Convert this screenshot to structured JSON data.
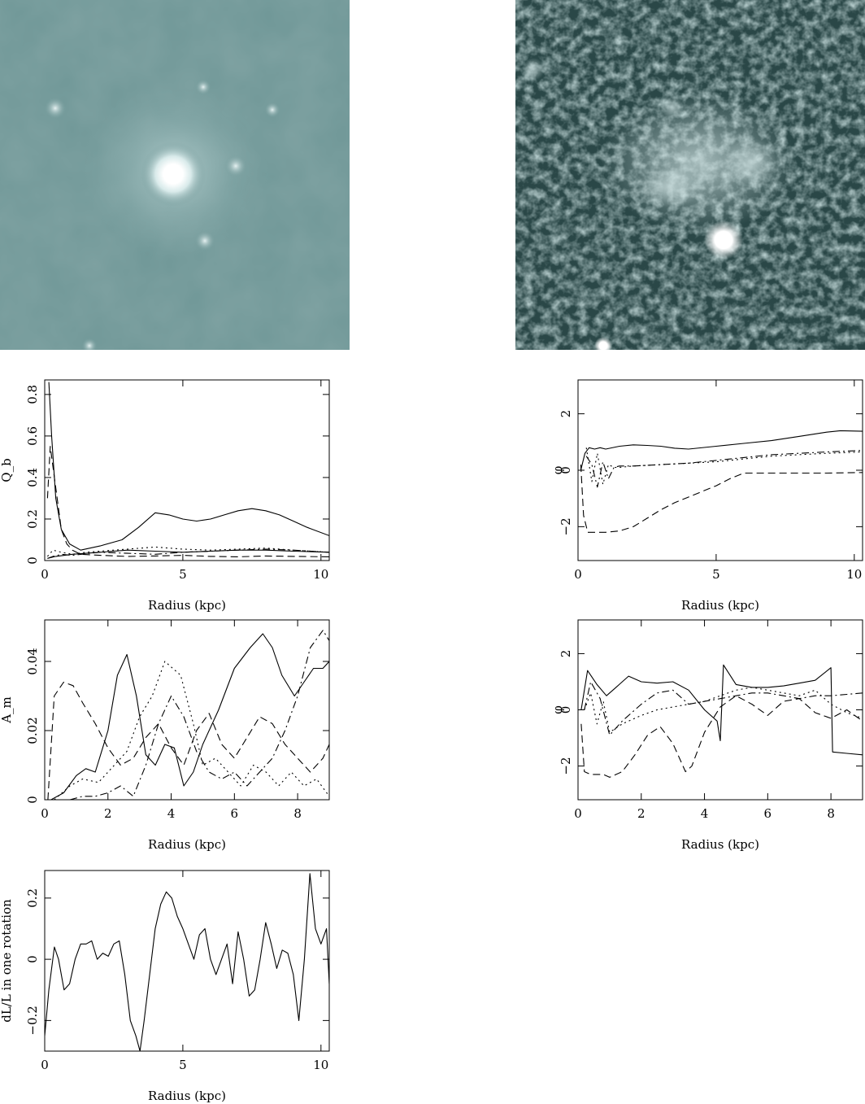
{
  "images": [
    {
      "name": "left-galaxy-image",
      "base": "#6f9797",
      "dark": "#567a7a"
    },
    {
      "name": "right-galaxy-image",
      "base": "#3f6464",
      "dark": "#1c3030"
    }
  ],
  "chart_data": [
    {
      "type": "line",
      "ylabel": "Q_b",
      "xlabel": "Radius (kpc)",
      "xlim": [
        0,
        10.3
      ],
      "ylim": [
        0,
        0.87
      ],
      "xticks": [
        "0",
        "5",
        "10"
      ],
      "yticks": [
        "0",
        "0.2",
        "0.4",
        "0.6",
        "0.8"
      ],
      "ytick_values": [
        0,
        0.2,
        0.4,
        0.6,
        0.8
      ],
      "xtick_values": [
        0,
        5,
        10
      ],
      "series": [
        {
          "style": "solid",
          "x": [
            0.15,
            0.25,
            0.4,
            0.6,
            0.9,
            1.3,
            2.0,
            2.8,
            3.4,
            4.0,
            4.5,
            5.0,
            5.5,
            6.0,
            6.5,
            7.0,
            7.5,
            8.0,
            8.5,
            9.0,
            9.5,
            10.3
          ],
          "y": [
            0.86,
            0.6,
            0.3,
            0.15,
            0.08,
            0.05,
            0.07,
            0.1,
            0.16,
            0.23,
            0.22,
            0.2,
            0.19,
            0.2,
            0.22,
            0.24,
            0.25,
            0.24,
            0.22,
            0.19,
            0.16,
            0.12
          ]
        },
        {
          "style": "dashed",
          "x": [
            0.1,
            0.2,
            0.3,
            0.45,
            0.6,
            0.8,
            1.0,
            1.3,
            2.0,
            3.0,
            4.0,
            5.0,
            6.0,
            7.0,
            8.0,
            9.0,
            10.3
          ],
          "y": [
            0.3,
            0.55,
            0.45,
            0.3,
            0.15,
            0.08,
            0.05,
            0.03,
            0.025,
            0.02,
            0.022,
            0.025,
            0.02,
            0.018,
            0.022,
            0.02,
            0.018
          ]
        },
        {
          "style": "dotted",
          "x": [
            0.1,
            0.3,
            0.6,
            1.0,
            1.5,
            2.5,
            3.5,
            4.0,
            5.0,
            6.0,
            7.0,
            8.0,
            9.0,
            10.3
          ],
          "y": [
            0.02,
            0.05,
            0.04,
            0.03,
            0.04,
            0.05,
            0.06,
            0.065,
            0.055,
            0.05,
            0.055,
            0.06,
            0.05,
            0.04
          ]
        },
        {
          "style": "dashdot",
          "x": [
            0.1,
            0.3,
            0.6,
            1.0,
            2.0,
            3.0,
            4.0,
            5.0,
            6.0,
            7.0,
            8.0,
            9.0,
            10.3
          ],
          "y": [
            0.01,
            0.02,
            0.03,
            0.025,
            0.04,
            0.035,
            0.03,
            0.04,
            0.045,
            0.05,
            0.055,
            0.05,
            0.04
          ]
        },
        {
          "style": "solid",
          "x": [
            0.1,
            0.4,
            1.0,
            2.0,
            3.0,
            4.0,
            5.0,
            6.0,
            7.0,
            8.0,
            9.0,
            10.3
          ],
          "y": [
            0.01,
            0.02,
            0.03,
            0.04,
            0.05,
            0.045,
            0.04,
            0.045,
            0.05,
            0.05,
            0.045,
            0.04
          ]
        }
      ]
    },
    {
      "type": "line",
      "ylabel": "φ",
      "xlabel": "Radius (kpc)",
      "xlim": [
        0,
        10.3
      ],
      "ylim": [
        -3.2,
        3.2
      ],
      "xticks": [
        "0",
        "5",
        "10"
      ],
      "yticks": [
        "−2",
        "0",
        "2"
      ],
      "ytick_values": [
        -2,
        0,
        2
      ],
      "xtick_values": [
        0,
        5,
        10
      ],
      "series": [
        {
          "style": "solid",
          "x": [
            0.1,
            0.25,
            0.4,
            0.6,
            0.8,
            1.0,
            1.5,
            2.0,
            2.5,
            3.0,
            3.5,
            4.0,
            5.0,
            6.0,
            7.0,
            8.0,
            9.0,
            9.5,
            10.3
          ],
          "y": [
            0.0,
            0.6,
            0.8,
            0.75,
            0.8,
            0.75,
            0.85,
            0.9,
            0.88,
            0.85,
            0.78,
            0.75,
            0.85,
            0.95,
            1.05,
            1.2,
            1.35,
            1.4,
            1.38
          ]
        },
        {
          "style": "dashed",
          "x": [
            0.1,
            0.2,
            0.35,
            0.6,
            1.0,
            1.5,
            2.0,
            2.5,
            3.0,
            3.5,
            4.0,
            4.5,
            5.0,
            5.5,
            6.0,
            7.0,
            8.0,
            9.0,
            10.3
          ],
          "y": [
            0.2,
            -1.6,
            -2.2,
            -2.2,
            -2.2,
            -2.15,
            -2.0,
            -1.7,
            -1.4,
            -1.15,
            -0.95,
            -0.75,
            -0.55,
            -0.3,
            -0.1,
            -0.1,
            -0.1,
            -0.1,
            -0.08
          ]
        },
        {
          "style": "dotted",
          "x": [
            0.3,
            0.5,
            0.7,
            0.9,
            1.1,
            1.3,
            1.5,
            2.0,
            3.0,
            4.0,
            5.0,
            6.0,
            7.0,
            8.0,
            9.0,
            10.3
          ],
          "y": [
            0.8,
            -0.4,
            0.6,
            -0.5,
            0.2,
            0.1,
            0.1,
            0.15,
            0.2,
            0.25,
            0.3,
            0.4,
            0.5,
            0.55,
            0.6,
            0.65
          ]
        },
        {
          "style": "dashdot",
          "x": [
            0.3,
            0.5,
            0.7,
            0.9,
            1.1,
            1.3,
            1.5,
            2.0,
            3.0,
            4.0,
            5.0,
            6.0,
            7.0,
            8.0,
            9.0,
            10.3
          ],
          "y": [
            0.5,
            0.2,
            -0.6,
            0.3,
            -0.3,
            0.1,
            0.15,
            0.15,
            0.2,
            0.25,
            0.35,
            0.45,
            0.55,
            0.6,
            0.65,
            0.7
          ]
        }
      ]
    },
    {
      "type": "line",
      "ylabel": "A_m",
      "xlabel": "Radius (kpc)",
      "xlim": [
        0,
        9
      ],
      "ylim": [
        0,
        0.052
      ],
      "xticks": [
        "0",
        "2",
        "4",
        "6",
        "8"
      ],
      "yticks": [
        "0",
        "0.02",
        "0.04"
      ],
      "ytick_values": [
        0,
        0.02,
        0.04
      ],
      "xtick_values": [
        0,
        2,
        4,
        6,
        8
      ],
      "series": [
        {
          "style": "solid",
          "x": [
            0.2,
            0.6,
            1.0,
            1.3,
            1.6,
            2.0,
            2.3,
            2.6,
            2.9,
            3.2,
            3.5,
            3.8,
            4.1,
            4.4,
            4.7,
            5.0,
            5.5,
            6.0,
            6.5,
            6.9,
            7.2,
            7.5,
            7.9,
            8.2,
            8.5,
            8.8,
            9.0
          ],
          "y": [
            0.0,
            0.002,
            0.007,
            0.009,
            0.008,
            0.02,
            0.036,
            0.042,
            0.03,
            0.013,
            0.01,
            0.016,
            0.015,
            0.004,
            0.008,
            0.016,
            0.026,
            0.038,
            0.044,
            0.048,
            0.044,
            0.036,
            0.03,
            0.034,
            0.038,
            0.038,
            0.04
          ]
        },
        {
          "style": "dashed",
          "x": [
            0.1,
            0.3,
            0.6,
            0.9,
            1.2,
            1.6,
            2.0,
            2.4,
            2.8,
            3.2,
            3.6,
            4.0,
            4.4,
            4.8,
            5.2,
            5.6,
            6.0,
            6.4,
            6.8,
            7.2,
            7.6,
            8.0,
            8.4,
            8.8,
            9.0
          ],
          "y": [
            0.0,
            0.03,
            0.034,
            0.033,
            0.028,
            0.022,
            0.015,
            0.01,
            0.012,
            0.018,
            0.022,
            0.015,
            0.01,
            0.02,
            0.025,
            0.016,
            0.012,
            0.018,
            0.024,
            0.022,
            0.016,
            0.012,
            0.008,
            0.012,
            0.016
          ]
        },
        {
          "style": "dotted",
          "x": [
            0.3,
            0.8,
            1.2,
            1.7,
            2.2,
            2.6,
            3.0,
            3.4,
            3.8,
            4.3,
            4.7,
            5.0,
            5.4,
            5.8,
            6.2,
            6.6,
            7.0,
            7.4,
            7.8,
            8.2,
            8.6,
            9.0
          ],
          "y": [
            0.0,
            0.004,
            0.006,
            0.005,
            0.01,
            0.014,
            0.024,
            0.03,
            0.04,
            0.036,
            0.022,
            0.01,
            0.012,
            0.008,
            0.004,
            0.01,
            0.008,
            0.004,
            0.008,
            0.004,
            0.006,
            0.001
          ]
        },
        {
          "style": "dashdot",
          "x": [
            0.8,
            1.2,
            1.6,
            2.0,
            2.4,
            2.8,
            3.2,
            3.6,
            4.0,
            4.4,
            4.8,
            5.2,
            5.6,
            6.0,
            6.4,
            6.8,
            7.2,
            7.6,
            8.0,
            8.4,
            8.8,
            9.0
          ],
          "y": [
            0.0,
            0.001,
            0.001,
            0.002,
            0.004,
            0.001,
            0.01,
            0.022,
            0.03,
            0.024,
            0.014,
            0.008,
            0.006,
            0.008,
            0.004,
            0.008,
            0.012,
            0.02,
            0.03,
            0.044,
            0.049,
            0.046
          ]
        }
      ]
    },
    {
      "type": "line",
      "ylabel": "φ",
      "xlabel": "Radius (kpc)",
      "xlim": [
        0,
        9
      ],
      "ylim": [
        -3.2,
        3.2
      ],
      "xticks": [
        "0",
        "2",
        "4",
        "6",
        "8"
      ],
      "yticks": [
        "−2",
        "0",
        "2"
      ],
      "ytick_values": [
        -2,
        0,
        2
      ],
      "xtick_values": [
        0,
        2,
        4,
        6,
        8
      ],
      "series": [
        {
          "style": "solid",
          "x": [
            0.1,
            0.3,
            0.6,
            0.9,
            1.2,
            1.6,
            2.0,
            2.5,
            3.0,
            3.5,
            4.0,
            4.4,
            4.5,
            4.6,
            5.0,
            5.5,
            6.0,
            6.5,
            7.0,
            7.5,
            8.0,
            8.05,
            8.5,
            9.0
          ],
          "y": [
            0.0,
            1.4,
            0.9,
            0.5,
            0.8,
            1.2,
            1.0,
            0.95,
            1.0,
            0.7,
            0.0,
            -0.4,
            -1.1,
            1.6,
            0.9,
            0.8,
            0.8,
            0.85,
            0.95,
            1.05,
            1.5,
            -1.5,
            -1.55,
            -1.6
          ]
        },
        {
          "style": "dashed",
          "x": [
            0.1,
            0.2,
            0.4,
            0.8,
            1.0,
            1.4,
            1.8,
            2.2,
            2.6,
            3.0,
            3.4,
            3.6,
            4.0,
            4.5,
            5.0,
            5.5,
            6.0,
            6.5,
            7.0,
            7.5,
            8.0,
            8.5,
            9.0
          ],
          "y": [
            -0.5,
            -2.2,
            -2.3,
            -2.3,
            -2.4,
            -2.2,
            -1.6,
            -0.9,
            -0.6,
            -1.2,
            -2.2,
            -2.0,
            -0.8,
            0.1,
            0.5,
            0.2,
            -0.2,
            0.3,
            0.4,
            -0.1,
            -0.3,
            0.0,
            -0.4
          ]
        },
        {
          "style": "dotted",
          "x": [
            0.2,
            0.4,
            0.6,
            0.8,
            1.0,
            1.4,
            2.0,
            2.5,
            3.0,
            3.5,
            4.0,
            4.5,
            5.0,
            5.5,
            6.0,
            6.5,
            7.0,
            7.5,
            8.0,
            8.5,
            9.0
          ],
          "y": [
            0.0,
            0.6,
            -0.5,
            0.3,
            -0.8,
            -0.5,
            -0.2,
            0.0,
            0.1,
            0.2,
            0.3,
            0.5,
            0.7,
            0.8,
            0.7,
            0.6,
            0.5,
            0.7,
            0.2,
            -0.1,
            -0.3
          ]
        },
        {
          "style": "dashdot",
          "x": [
            0.2,
            0.4,
            0.7,
            1.0,
            1.4,
            2.0,
            2.5,
            3.0,
            3.5,
            4.0,
            4.5,
            5.0,
            5.5,
            6.0,
            6.5,
            7.0,
            7.5,
            8.0,
            8.5,
            9.0
          ],
          "y": [
            0.0,
            1.0,
            0.4,
            -0.9,
            -0.4,
            0.2,
            0.6,
            0.7,
            0.2,
            0.3,
            0.4,
            0.5,
            0.6,
            0.6,
            0.5,
            0.4,
            0.5,
            0.5,
            0.55,
            0.6
          ]
        }
      ]
    },
    {
      "type": "line",
      "ylabel": "dL/L in one rotation",
      "xlabel": "Radius (kpc)",
      "xlim": [
        0,
        10.3
      ],
      "ylim": [
        -0.3,
        0.29
      ],
      "xticks": [
        "0",
        "5",
        "10"
      ],
      "yticks": [
        "−0.2",
        "0",
        "0.2"
      ],
      "ytick_values": [
        -0.2,
        0,
        0.2
      ],
      "xtick_values": [
        0,
        5,
        10
      ],
      "series": [
        {
          "style": "solid",
          "x": [
            0.0,
            0.15,
            0.35,
            0.5,
            0.7,
            0.9,
            1.1,
            1.3,
            1.5,
            1.7,
            1.9,
            2.1,
            2.3,
            2.5,
            2.7,
            2.9,
            3.1,
            3.3,
            3.45,
            3.6,
            3.8,
            4.0,
            4.2,
            4.4,
            4.6,
            4.8,
            5.0,
            5.2,
            5.4,
            5.6,
            5.8,
            6.0,
            6.2,
            6.4,
            6.6,
            6.8,
            7.0,
            7.2,
            7.4,
            7.6,
            7.8,
            8.0,
            8.2,
            8.4,
            8.6,
            8.8,
            9.0,
            9.2,
            9.4,
            9.6,
            9.8,
            10.0,
            10.2,
            10.3
          ],
          "y": [
            -0.25,
            -0.1,
            0.04,
            0.0,
            -0.1,
            -0.08,
            0.0,
            0.05,
            0.05,
            0.06,
            0.0,
            0.02,
            0.01,
            0.05,
            0.06,
            -0.05,
            -0.2,
            -0.25,
            -0.3,
            -0.2,
            -0.05,
            0.1,
            0.18,
            0.22,
            0.2,
            0.14,
            0.1,
            0.05,
            0.0,
            0.08,
            0.1,
            0.0,
            -0.05,
            0.0,
            0.05,
            -0.08,
            0.09,
            0.0,
            -0.12,
            -0.1,
            0.0,
            0.12,
            0.05,
            -0.03,
            0.03,
            0.02,
            -0.05,
            -0.2,
            0.0,
            0.28,
            0.1,
            0.05,
            0.1,
            -0.08
          ]
        }
      ]
    }
  ]
}
